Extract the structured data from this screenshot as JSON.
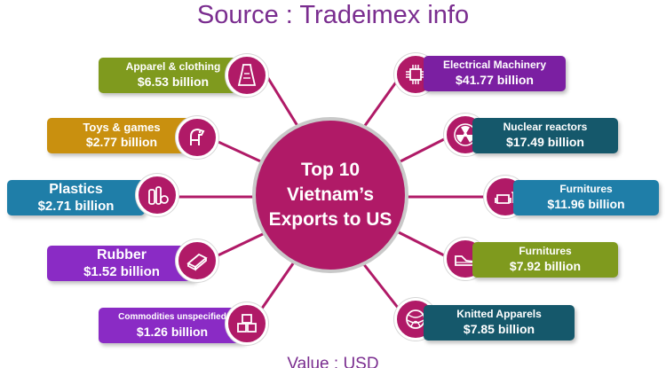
{
  "header": {
    "title": "Source : Tradeimex info"
  },
  "hub": {
    "title": "Top 10 Vietnam’s Exports to US"
  },
  "footer": {
    "text": "Value : USD"
  },
  "colors": {
    "hub": "#b01a67",
    "olive": "#7f9a1e",
    "mustard": "#c9900f",
    "blue": "#1f7ea8",
    "violet": "#8a2bc5",
    "purple": "#7b1fa2",
    "teal": "#15586b"
  },
  "items": [
    {
      "label": "Apparel & clothing",
      "value": "$6.53 billion",
      "icon": "dress-icon",
      "color": "#7f9a1e"
    },
    {
      "label": "Toys & games",
      "value": "$2.77 billion",
      "icon": "toy-horse-icon",
      "color": "#c9900f"
    },
    {
      "label": "Plastics",
      "value": "$2.71 billion",
      "icon": "plastic-bottles-icon",
      "color": "#1f7ea8"
    },
    {
      "label": "Rubber",
      "value": "$1.52 billion",
      "icon": "rubber-sheet-icon",
      "color": "#8a2bc5"
    },
    {
      "label": "Commodities unspecified",
      "value": "$1.26 billion",
      "icon": "boxes-icon",
      "color": "#8a2bc5"
    },
    {
      "label": "Electrical Machinery",
      "value": "$41.77 billion",
      "icon": "chip-icon",
      "color": "#7b1fa2"
    },
    {
      "label": "Nuclear reactors",
      "value": "$17.49 billion",
      "icon": "radiation-icon",
      "color": "#15586b"
    },
    {
      "label": "Furnitures",
      "value": "$11.96 billion",
      "icon": "sofa-icon",
      "color": "#1f7ea8"
    },
    {
      "label": "Furnitures",
      "value": "$7.92 billion",
      "icon": "shoe-icon",
      "color": "#7f9a1e"
    },
    {
      "label": "Knitted Apparels",
      "value": "$7.85 billion",
      "icon": "yarn-icon",
      "color": "#15586b"
    }
  ]
}
